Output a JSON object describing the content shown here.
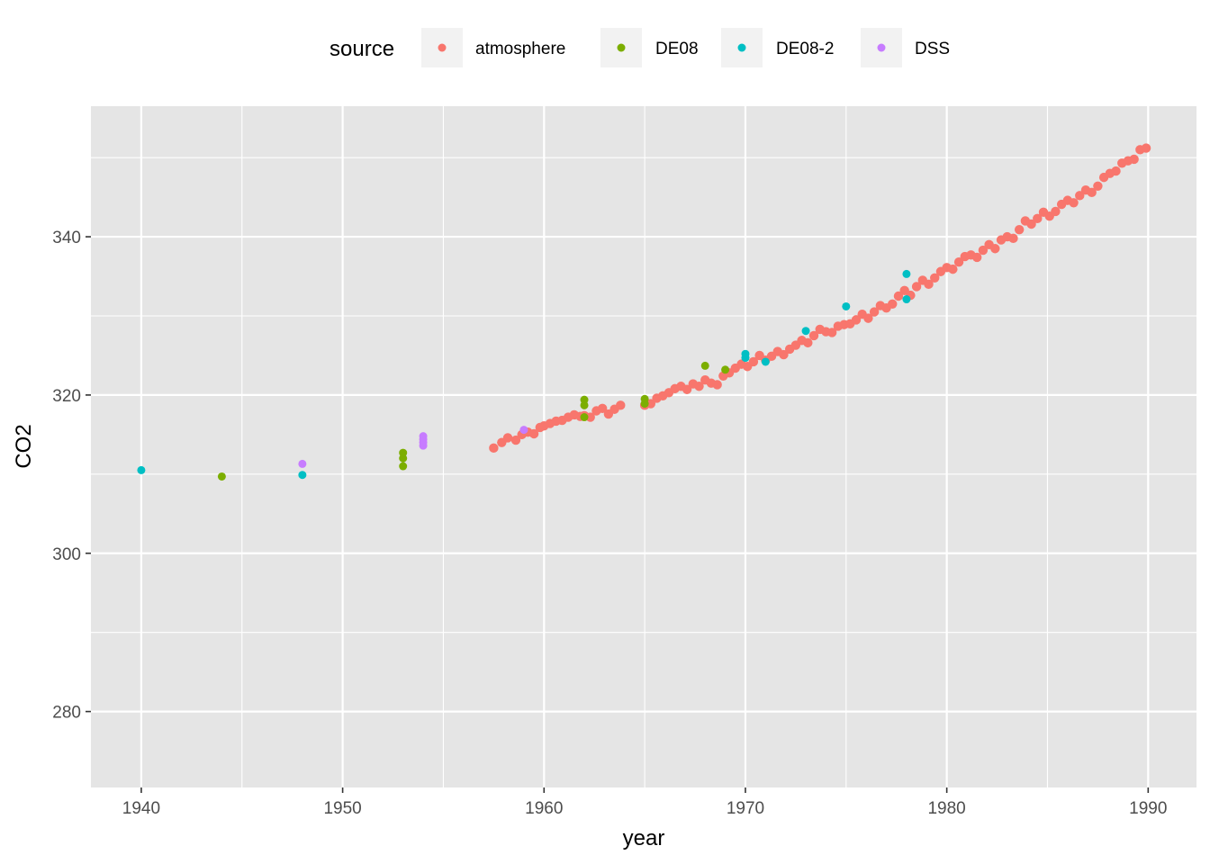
{
  "chart_data": {
    "type": "scatter",
    "title": "",
    "xlabel": "year",
    "ylabel": "CO2",
    "xlim": [
      1937.5,
      1992.4
    ],
    "ylim": [
      270.4,
      356.5
    ],
    "x_ticks": [
      1940,
      1950,
      1960,
      1970,
      1980,
      1990
    ],
    "y_ticks": [
      280,
      300,
      320,
      340
    ],
    "grid": true,
    "legend": {
      "title": "source",
      "position": "top"
    },
    "colors": {
      "atmosphere": "#F8766D",
      "DE08": "#7CAE00",
      "DE08-2": "#00BFC4",
      "DSS": "#C77CFF",
      "panel_background": "#E5E5E5",
      "grid_line": "#FFFFFF"
    },
    "series": [
      {
        "name": "atmosphere",
        "x": [
          1957.5,
          1957.9,
          1958.2,
          1958.6,
          1958.9,
          1959.2,
          1959.5,
          1959.8,
          1960.0,
          1960.3,
          1960.6,
          1960.9,
          1961.2,
          1961.5,
          1961.8,
          1962.0,
          1962.3,
          1962.6,
          1962.9,
          1963.2,
          1963.5,
          1963.8,
          1965.0,
          1965.3,
          1965.6,
          1965.9,
          1966.2,
          1966.5,
          1966.8,
          1967.1,
          1967.4,
          1967.7,
          1968.0,
          1968.3,
          1968.6,
          1968.9,
          1969.2,
          1969.5,
          1969.8,
          1970.1,
          1970.4,
          1970.7,
          1971.0,
          1971.3,
          1971.6,
          1971.9,
          1972.2,
          1972.5,
          1972.8,
          1973.1,
          1973.4,
          1973.7,
          1974.0,
          1974.3,
          1974.6,
          1974.9,
          1975.2,
          1975.5,
          1975.8,
          1976.1,
          1976.4,
          1976.7,
          1977.0,
          1977.3,
          1977.6,
          1977.9,
          1978.2,
          1978.5,
          1978.8,
          1979.1,
          1979.4,
          1979.7,
          1980.0,
          1980.3,
          1980.6,
          1980.9,
          1981.2,
          1981.5,
          1981.8,
          1982.1,
          1982.4,
          1982.7,
          1983.0,
          1983.3,
          1983.6,
          1983.9,
          1984.2,
          1984.5,
          1984.8,
          1985.1,
          1985.4,
          1985.7,
          1986.0,
          1986.3,
          1986.6,
          1986.9,
          1987.2,
          1987.5,
          1987.8,
          1988.1,
          1988.4,
          1988.7,
          1989.0,
          1989.3,
          1989.6,
          1989.9
        ],
        "y": [
          313.3,
          314.0,
          314.6,
          314.3,
          315.0,
          315.3,
          315.1,
          315.9,
          316.1,
          316.4,
          316.7,
          316.8,
          317.2,
          317.5,
          317.3,
          317.4,
          317.2,
          318.0,
          318.3,
          317.6,
          318.2,
          318.7,
          318.7,
          318.9,
          319.6,
          319.9,
          320.3,
          320.8,
          321.1,
          320.7,
          321.4,
          321.1,
          321.9,
          321.5,
          321.3,
          322.4,
          322.8,
          323.4,
          323.9,
          323.6,
          324.2,
          325.0,
          324.4,
          324.9,
          325.5,
          325.1,
          325.8,
          326.3,
          326.9,
          326.6,
          327.5,
          328.3,
          328.0,
          327.9,
          328.7,
          328.9,
          329.0,
          329.5,
          330.2,
          329.7,
          330.5,
          331.3,
          331.0,
          331.5,
          332.5,
          333.2,
          332.6,
          333.7,
          334.5,
          334.0,
          334.8,
          335.6,
          336.1,
          335.9,
          336.8,
          337.5,
          337.7,
          337.4,
          338.3,
          339.0,
          338.5,
          339.6,
          340.0,
          339.8,
          340.9,
          342.0,
          341.6,
          342.3,
          343.1,
          342.6,
          343.2,
          344.1,
          344.6,
          344.3,
          345.2,
          345.9,
          345.6,
          346.4,
          347.5,
          348.0,
          348.3,
          349.3,
          349.6,
          349.8,
          351.0,
          351.2
        ]
      },
      {
        "name": "DE08",
        "x": [
          1944,
          1953,
          1953,
          1953,
          1962,
          1962,
          1962,
          1965,
          1965,
          1968,
          1969
        ],
        "y": [
          309.7,
          311.0,
          312.0,
          312.7,
          318.7,
          319.4,
          317.2,
          318.9,
          319.5,
          323.7,
          323.2
        ]
      },
      {
        "name": "DE08-2",
        "x": [
          1940,
          1948,
          1970,
          1970,
          1971,
          1973,
          1975,
          1978,
          1978
        ],
        "y": [
          310.5,
          309.9,
          324.7,
          325.2,
          324.2,
          328.1,
          331.2,
          335.3,
          332.1
        ]
      },
      {
        "name": "DSS",
        "x": [
          1948,
          1954,
          1954,
          1954,
          1954,
          1959
        ],
        "y": [
          311.3,
          313.6,
          314.0,
          314.4,
          314.8,
          315.6
        ]
      }
    ]
  }
}
